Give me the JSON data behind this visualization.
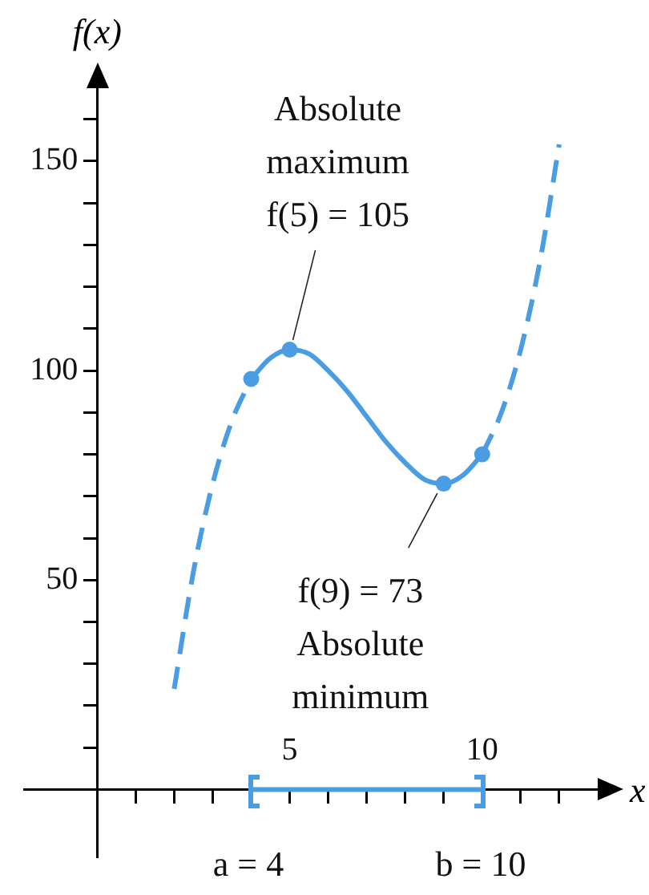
{
  "chart_data": {
    "type": "line",
    "xlabel": "x",
    "ylabel": "f(x)",
    "xlim": [
      -1.9,
      13.5
    ],
    "ylim": [
      -16,
      172
    ],
    "xticks": [
      {
        "value": 1,
        "label": null
      },
      {
        "value": 2,
        "label": null
      },
      {
        "value": 3,
        "label": null
      },
      {
        "value": 4,
        "label": null
      },
      5,
      {
        "value": 6,
        "label": null
      },
      {
        "value": 7,
        "label": null
      },
      {
        "value": 8,
        "label": null
      },
      {
        "value": 9,
        "label": null
      },
      10,
      {
        "value": 11,
        "label": null
      },
      {
        "value": 12,
        "label": null
      }
    ],
    "yticks": [
      {
        "value": 10,
        "label": null
      },
      {
        "value": 20,
        "label": null
      },
      {
        "value": 30,
        "label": null
      },
      {
        "value": 40,
        "label": null
      },
      50,
      {
        "value": 60,
        "label": null
      },
      {
        "value": 70,
        "label": null
      },
      {
        "value": 80,
        "label": null
      },
      {
        "value": 90,
        "label": null
      },
      100,
      {
        "value": 110,
        "label": null
      },
      {
        "value": 120,
        "label": null
      },
      {
        "value": 130,
        "label": null
      },
      {
        "value": 140,
        "label": null
      },
      150,
      {
        "value": 160,
        "label": null
      }
    ],
    "series": [
      {
        "type": "line",
        "color": "#4a9de3",
        "line_style": "dashed",
        "marker": "none",
        "x": [
          2,
          2.5,
          3,
          3.5,
          4
        ],
        "values": [
          24,
          52,
          73,
          88,
          98
        ]
      },
      {
        "color": "#4a9de3",
        "line_style": "solid",
        "marker": "none",
        "x": [
          4,
          4.5,
          5,
          5.5,
          6,
          6.5,
          7,
          7.5,
          8,
          8.5,
          9,
          9.5,
          10
        ],
        "values": [
          98,
          103,
          105,
          104,
          100,
          95,
          89,
          83,
          78,
          74,
          73,
          75,
          80
        ]
      },
      {
        "color": "#4a9de3",
        "line_style": "dashed",
        "marker": "none",
        "x": [
          10,
          10.5,
          11,
          11.5,
          12
        ],
        "values": [
          80,
          90,
          105,
          126,
          154
        ]
      },
      {
        "type": "scatter",
        "color": "#4a9de3",
        "marker": "circle",
        "x": [
          4,
          5,
          9,
          10
        ],
        "values": [
          98,
          105,
          73,
          80
        ]
      },
      {
        "color": "#4a9de3",
        "line_style": "solid",
        "marker": "none",
        "x": [
          4,
          10
        ],
        "values": [
          0,
          0
        ]
      }
    ],
    "annotations": [
      {
        "text": "Absolute\nmaximum\nf(5) = 105",
        "x": 5,
        "y": 105
      },
      {
        "text": "f(9) = 73\nAbsolute\nminimum",
        "x": 9,
        "y": 73
      },
      "a = 4",
      "b = 10"
    ],
    "grid": false
  }
}
